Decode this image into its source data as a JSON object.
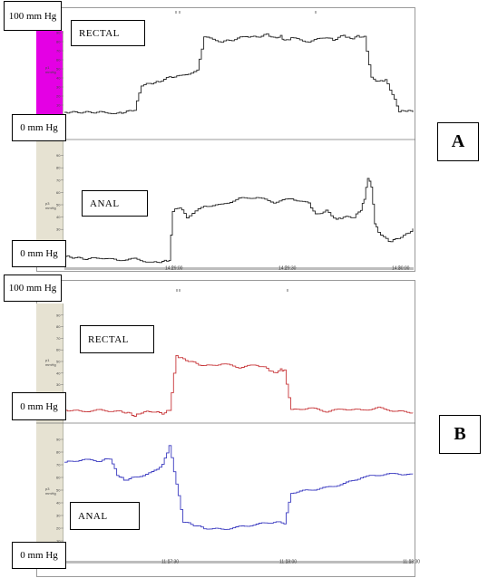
{
  "chart_data": [
    {
      "type": "line",
      "panel_label": "A",
      "time_ticks": [
        "14:29:00",
        "14:29:30",
        "14:30:00"
      ],
      "channels": [
        {
          "name": "RECTAL",
          "top_scale": "100 mm Hg",
          "bottom_scale": "0 mm Hg",
          "unit_text": "p1\nmmHg",
          "color": "#222222",
          "ylim": [
            0,
            100
          ],
          "x": [
            0,
            10,
            15,
            17,
            20,
            22,
            25,
            27,
            30,
            33,
            38,
            40,
            45,
            48,
            52,
            55,
            58,
            60,
            62,
            63,
            65,
            70,
            75,
            77,
            80,
            82,
            84,
            86,
            88,
            90,
            92,
            94,
            96,
            98,
            100
          ],
          "values": [
            2,
            2,
            1,
            2,
            5,
            32,
            34,
            36,
            41,
            42,
            48,
            85,
            80,
            82,
            86,
            85,
            88,
            84,
            86,
            81,
            84,
            80,
            85,
            82,
            87,
            83,
            86,
            85,
            40,
            36,
            38,
            22,
            3,
            4,
            3
          ]
        },
        {
          "name": "ANAL",
          "top_scale": "",
          "bottom_scale": "0 mm Hg",
          "unit_text": "p3\nmmHg",
          "color": "#222222",
          "ylim": [
            0,
            100
          ],
          "x": [
            0,
            6,
            10,
            15,
            20,
            25,
            28,
            30,
            31,
            33,
            35,
            40,
            45,
            50,
            55,
            60,
            65,
            70,
            72,
            75,
            78,
            80,
            83,
            85,
            86,
            87,
            88,
            89,
            90,
            93,
            95,
            98,
            100
          ],
          "values": [
            8,
            6,
            7,
            5,
            6,
            3,
            4,
            5,
            45,
            48,
            40,
            49,
            50,
            55,
            56,
            52,
            55,
            51,
            42,
            45,
            38,
            40,
            40,
            46,
            55,
            72,
            65,
            35,
            28,
            20,
            22,
            26,
            30
          ]
        }
      ]
    },
    {
      "type": "line",
      "panel_label": "B",
      "time_ticks": [
        "11:17:30",
        "11:18:00",
        "11:18:30"
      ],
      "channels": [
        {
          "name": "RECTAL",
          "top_scale": "100 mm Hg",
          "bottom_scale": "0 mm Hg",
          "unit_text": "p1\nmmHg",
          "color": "#c8373a",
          "ylim": [
            0,
            100
          ],
          "x": [
            0,
            5,
            10,
            15,
            18,
            20,
            22,
            25,
            28,
            30,
            32,
            34,
            40,
            45,
            50,
            55,
            58,
            60,
            62,
            63,
            65,
            70,
            75,
            80,
            85,
            90,
            95,
            100
          ],
          "values": [
            8,
            7,
            8,
            7,
            6,
            3,
            6,
            7,
            5,
            8,
            55,
            52,
            46,
            48,
            45,
            47,
            44,
            40,
            43,
            42,
            8,
            10,
            7,
            9,
            8,
            10,
            7,
            6
          ]
        },
        {
          "name": "ANAL",
          "top_scale": "",
          "bottom_scale": "0 mm Hg",
          "unit_text": "p3\nmmHg",
          "color": "#3a3ac0",
          "ylim": [
            0,
            100
          ],
          "x": [
            0,
            5,
            10,
            13,
            15,
            17,
            20,
            25,
            28,
            30,
            32,
            34,
            40,
            45,
            50,
            55,
            60,
            63,
            65,
            70,
            75,
            80,
            85,
            90,
            95,
            100
          ],
          "values": [
            72,
            74,
            73,
            75,
            62,
            58,
            60,
            64,
            70,
            85,
            55,
            25,
            20,
            19,
            21,
            23,
            25,
            24,
            48,
            50,
            52,
            55,
            60,
            62,
            63,
            62
          ]
        }
      ]
    }
  ],
  "panels": {
    "a": {
      "letter": "A",
      "top_scale": "100 mm Hg",
      "mid_scale": "0 mm Hg",
      "bottom_scale": "0 mm Hg",
      "trace_top": "RECTAL",
      "trace_bottom": "ANAL",
      "strip_color_top": "#e400e4",
      "strip_color_bottom": "#e6e2d2"
    },
    "b": {
      "letter": "B",
      "top_scale": "100 mm Hg",
      "mid_scale": "0 mm Hg",
      "bottom_scale": "0 mm Hg",
      "trace_top": "RECTAL",
      "trace_bottom": "ANAL",
      "strip_color_top": "#e6e2d2",
      "strip_color_bottom": "#e6e2d2"
    }
  }
}
